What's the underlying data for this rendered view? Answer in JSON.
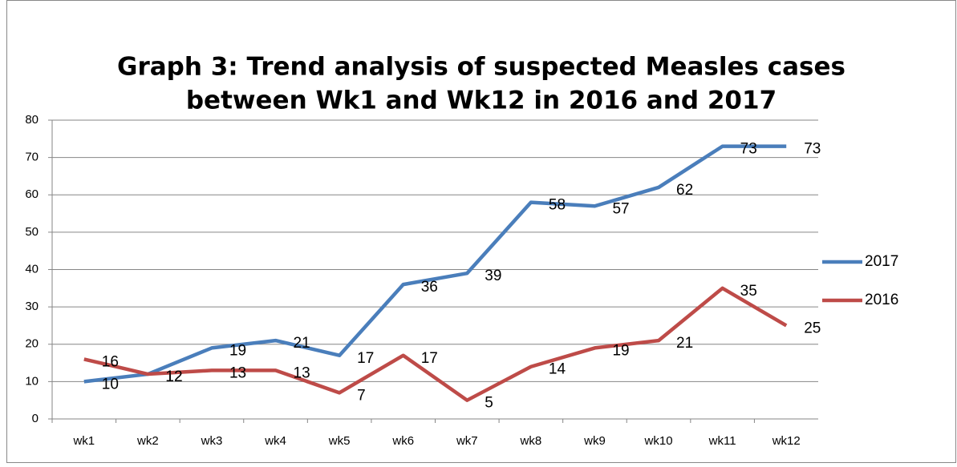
{
  "chart_data": {
    "type": "line",
    "title": [
      "Graph 3: Trend analysis of suspected Measles cases",
      "between Wk1 and Wk12 in 2016 and 2017"
    ],
    "categories": [
      "wk1",
      "wk2",
      "wk3",
      "wk4",
      "wk5",
      "wk6",
      "wk7",
      "wk8",
      "wk9",
      "wk10",
      "wk11",
      "wk12"
    ],
    "series": [
      {
        "name": "2017",
        "color": "#4a7ebb",
        "values": [
          10,
          12,
          19,
          21,
          17,
          36,
          39,
          58,
          57,
          62,
          73,
          73
        ]
      },
      {
        "name": "2016",
        "color": "#be4b48",
        "values": [
          16,
          12,
          13,
          13,
          7,
          17,
          5,
          14,
          19,
          21,
          35,
          25
        ]
      }
    ],
    "ylim": [
      0,
      80
    ],
    "yticks": [
      0,
      10,
      20,
      30,
      40,
      50,
      60,
      70,
      80
    ],
    "grid": true,
    "legend": "right"
  }
}
